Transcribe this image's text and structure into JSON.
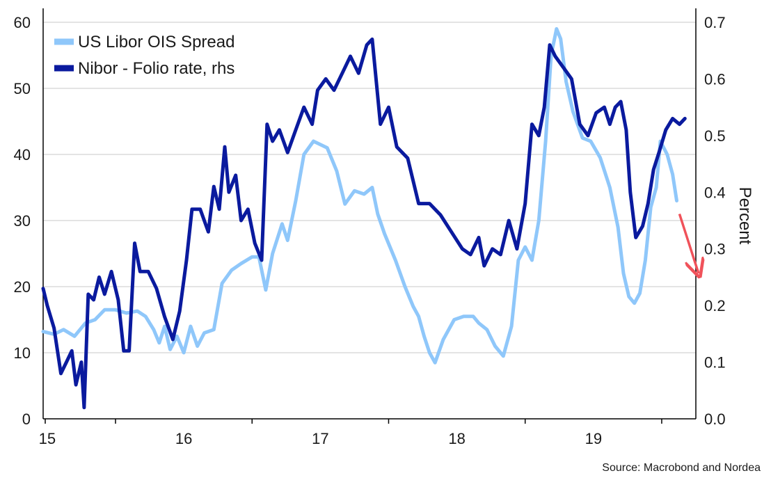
{
  "chart_data": {
    "type": "line",
    "title": "",
    "xlabel": "",
    "ylabel_left": "",
    "ylabel_right": "Percent",
    "x_range": [
      2014.47,
      2019.25
    ],
    "x_ticks": [
      {
        "value": 2015,
        "label": "15"
      },
      {
        "value": 2016,
        "label": "16"
      },
      {
        "value": 2017,
        "label": "17"
      },
      {
        "value": 2018,
        "label": "18"
      },
      {
        "value": 2019,
        "label": "19"
      }
    ],
    "ylim_left": [
      0,
      60
    ],
    "yticks_left": [
      "0",
      "10",
      "20",
      "30",
      "40",
      "50",
      "60"
    ],
    "ylim_right": [
      0.0,
      0.7
    ],
    "yticks_right": [
      "0.0",
      "0.1",
      "0.2",
      "0.3",
      "0.4",
      "0.5",
      "0.6",
      "0.7"
    ],
    "grid": "horizontal",
    "legend_position": "top-left",
    "source": "Source: Macrobond and Nordea",
    "series": [
      {
        "name": "US Libor OIS Spread",
        "axis": "left",
        "color": "#8fc7fa",
        "points": [
          [
            2014.47,
            13.2
          ],
          [
            2014.55,
            12.8
          ],
          [
            2014.62,
            13.5
          ],
          [
            2014.7,
            12.5
          ],
          [
            2014.78,
            14.5
          ],
          [
            2014.85,
            15.0
          ],
          [
            2014.92,
            16.5
          ],
          [
            2015.0,
            16.5
          ],
          [
            2015.08,
            16.0
          ],
          [
            2015.16,
            16.3
          ],
          [
            2015.22,
            15.5
          ],
          [
            2015.28,
            13.5
          ],
          [
            2015.32,
            11.5
          ],
          [
            2015.36,
            14.0
          ],
          [
            2015.4,
            10.5
          ],
          [
            2015.45,
            12.5
          ],
          [
            2015.5,
            10.0
          ],
          [
            2015.55,
            14.0
          ],
          [
            2015.6,
            11.0
          ],
          [
            2015.65,
            13.0
          ],
          [
            2015.72,
            13.5
          ],
          [
            2015.78,
            20.5
          ],
          [
            2015.85,
            22.5
          ],
          [
            2015.92,
            23.5
          ],
          [
            2016.0,
            24.5
          ],
          [
            2016.05,
            24.5
          ],
          [
            2016.1,
            19.5
          ],
          [
            2016.15,
            25.0
          ],
          [
            2016.22,
            29.5
          ],
          [
            2016.26,
            27.0
          ],
          [
            2016.32,
            33.0
          ],
          [
            2016.38,
            40.0
          ],
          [
            2016.45,
            42.0
          ],
          [
            2016.55,
            41.0
          ],
          [
            2016.62,
            37.5
          ],
          [
            2016.68,
            32.5
          ],
          [
            2016.75,
            34.5
          ],
          [
            2016.82,
            34.0
          ],
          [
            2016.88,
            35.0
          ],
          [
            2016.92,
            31.0
          ],
          [
            2016.97,
            28.0
          ],
          [
            2017.05,
            24.0
          ],
          [
            2017.12,
            20.0
          ],
          [
            2017.18,
            17.0
          ],
          [
            2017.22,
            15.5
          ],
          [
            2017.26,
            12.5
          ],
          [
            2017.3,
            10.0
          ],
          [
            2017.34,
            8.5
          ],
          [
            2017.4,
            12.0
          ],
          [
            2017.48,
            15.0
          ],
          [
            2017.55,
            15.5
          ],
          [
            2017.62,
            15.5
          ],
          [
            2017.66,
            14.5
          ],
          [
            2017.72,
            13.5
          ],
          [
            2017.78,
            11.0
          ],
          [
            2017.84,
            9.5
          ],
          [
            2017.9,
            14.0
          ],
          [
            2017.95,
            24.0
          ],
          [
            2018.0,
            26.0
          ],
          [
            2018.05,
            24.0
          ],
          [
            2018.1,
            30.0
          ],
          [
            2018.15,
            42.0
          ],
          [
            2018.19,
            55.0
          ],
          [
            2018.23,
            59.0
          ],
          [
            2018.26,
            57.5
          ],
          [
            2018.3,
            51.0
          ],
          [
            2018.35,
            46.5
          ],
          [
            2018.42,
            42.5
          ],
          [
            2018.48,
            42.0
          ],
          [
            2018.55,
            39.5
          ],
          [
            2018.62,
            35.0
          ],
          [
            2018.68,
            29.0
          ],
          [
            2018.72,
            22.0
          ],
          [
            2018.76,
            18.5
          ],
          [
            2018.8,
            17.5
          ],
          [
            2018.84,
            19.0
          ],
          [
            2018.88,
            24.0
          ],
          [
            2018.92,
            32.0
          ],
          [
            2018.96,
            35.0
          ],
          [
            2018.99,
            42.0
          ],
          [
            2019.04,
            40.0
          ],
          [
            2019.08,
            37.0
          ],
          [
            2019.11,
            33.0
          ]
        ]
      },
      {
        "name": "Nibor - Folio rate, rhs",
        "axis": "right",
        "color": "#0a1a9e",
        "points": [
          [
            2014.47,
            0.23
          ],
          [
            2014.5,
            0.2
          ],
          [
            2014.55,
            0.16
          ],
          [
            2014.6,
            0.08
          ],
          [
            2014.64,
            0.1
          ],
          [
            2014.68,
            0.12
          ],
          [
            2014.71,
            0.06
          ],
          [
            2014.75,
            0.1
          ],
          [
            2014.77,
            0.02
          ],
          [
            2014.8,
            0.22
          ],
          [
            2014.84,
            0.21
          ],
          [
            2014.88,
            0.25
          ],
          [
            2014.92,
            0.22
          ],
          [
            2014.97,
            0.26
          ],
          [
            2015.02,
            0.21
          ],
          [
            2015.06,
            0.12
          ],
          [
            2015.1,
            0.12
          ],
          [
            2015.14,
            0.31
          ],
          [
            2015.18,
            0.26
          ],
          [
            2015.24,
            0.26
          ],
          [
            2015.3,
            0.23
          ],
          [
            2015.36,
            0.18
          ],
          [
            2015.42,
            0.14
          ],
          [
            2015.47,
            0.19
          ],
          [
            2015.52,
            0.28
          ],
          [
            2015.56,
            0.37
          ],
          [
            2015.62,
            0.37
          ],
          [
            2015.68,
            0.33
          ],
          [
            2015.72,
            0.41
          ],
          [
            2015.76,
            0.37
          ],
          [
            2015.8,
            0.48
          ],
          [
            2015.83,
            0.4
          ],
          [
            2015.88,
            0.43
          ],
          [
            2015.92,
            0.35
          ],
          [
            2015.97,
            0.37
          ],
          [
            2016.02,
            0.31
          ],
          [
            2016.07,
            0.28
          ],
          [
            2016.11,
            0.52
          ],
          [
            2016.15,
            0.49
          ],
          [
            2016.2,
            0.51
          ],
          [
            2016.26,
            0.47
          ],
          [
            2016.32,
            0.51
          ],
          [
            2016.38,
            0.55
          ],
          [
            2016.44,
            0.52
          ],
          [
            2016.48,
            0.58
          ],
          [
            2016.54,
            0.6
          ],
          [
            2016.6,
            0.58
          ],
          [
            2016.66,
            0.61
          ],
          [
            2016.72,
            0.64
          ],
          [
            2016.78,
            0.61
          ],
          [
            2016.84,
            0.66
          ],
          [
            2016.88,
            0.67
          ],
          [
            2016.94,
            0.52
          ],
          [
            2017.0,
            0.55
          ],
          [
            2017.06,
            0.48
          ],
          [
            2017.14,
            0.46
          ],
          [
            2017.22,
            0.38
          ],
          [
            2017.3,
            0.38
          ],
          [
            2017.38,
            0.36
          ],
          [
            2017.46,
            0.33
          ],
          [
            2017.54,
            0.3
          ],
          [
            2017.6,
            0.29
          ],
          [
            2017.66,
            0.32
          ],
          [
            2017.7,
            0.27
          ],
          [
            2017.76,
            0.3
          ],
          [
            2017.82,
            0.29
          ],
          [
            2017.88,
            0.35
          ],
          [
            2017.94,
            0.3
          ],
          [
            2018.0,
            0.38
          ],
          [
            2018.05,
            0.52
          ],
          [
            2018.1,
            0.5
          ],
          [
            2018.14,
            0.55
          ],
          [
            2018.18,
            0.66
          ],
          [
            2018.22,
            0.64
          ],
          [
            2018.28,
            0.62
          ],
          [
            2018.34,
            0.6
          ],
          [
            2018.4,
            0.52
          ],
          [
            2018.46,
            0.5
          ],
          [
            2018.52,
            0.54
          ],
          [
            2018.58,
            0.55
          ],
          [
            2018.62,
            0.52
          ],
          [
            2018.66,
            0.55
          ],
          [
            2018.7,
            0.56
          ],
          [
            2018.74,
            0.51
          ],
          [
            2018.77,
            0.4
          ],
          [
            2018.81,
            0.32
          ],
          [
            2018.86,
            0.34
          ],
          [
            2018.9,
            0.38
          ],
          [
            2018.94,
            0.44
          ],
          [
            2018.98,
            0.47
          ],
          [
            2019.03,
            0.51
          ],
          [
            2019.08,
            0.53
          ],
          [
            2019.13,
            0.52
          ],
          [
            2019.17,
            0.53
          ]
        ]
      }
    ],
    "annotations": [
      {
        "type": "arrow",
        "color": "#f0525a",
        "from": [
          2019.13,
          31.0
        ],
        "to": [
          2019.27,
          22.0
        ]
      }
    ]
  }
}
